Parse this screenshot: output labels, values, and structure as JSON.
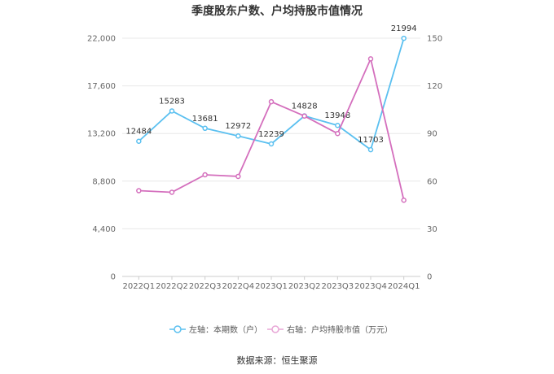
{
  "chart_data": {
    "type": "line",
    "title": "季度股东户数、户均持股市值情况",
    "categories": [
      "2022Q1",
      "2022Q2",
      "2022Q3",
      "2022Q4",
      "2023Q1",
      "2023Q2",
      "2023Q3",
      "2023Q4",
      "2024Q1"
    ],
    "left_axis": {
      "ticks": [
        "0",
        "4,400",
        "8,800",
        "13,200",
        "17,600",
        "22,000"
      ],
      "ylim": [
        0,
        22000
      ]
    },
    "right_axis": {
      "ticks": [
        "0",
        "30",
        "60",
        "90",
        "120",
        "150"
      ],
      "ylim": [
        0,
        150
      ]
    },
    "grid": true,
    "legend_position": "bottom",
    "series": [
      {
        "name": "左轴：本期数（户）",
        "axis": "left",
        "color": "#5bc0f0",
        "values": [
          12484,
          15283,
          13681,
          12972,
          12239,
          14828,
          13948,
          11703,
          21994
        ],
        "labels": [
          "12484",
          "15283",
          "13681",
          "12972",
          "12239",
          "14828",
          "13948",
          "11703",
          "21994"
        ]
      },
      {
        "name": "右轴：户均持股市值（万元）",
        "axis": "right",
        "color": "#d46fbd",
        "values": [
          54,
          53,
          64,
          63,
          110,
          101,
          90,
          137,
          48
        ]
      }
    ],
    "source": "数据来源：恒生聚源"
  }
}
